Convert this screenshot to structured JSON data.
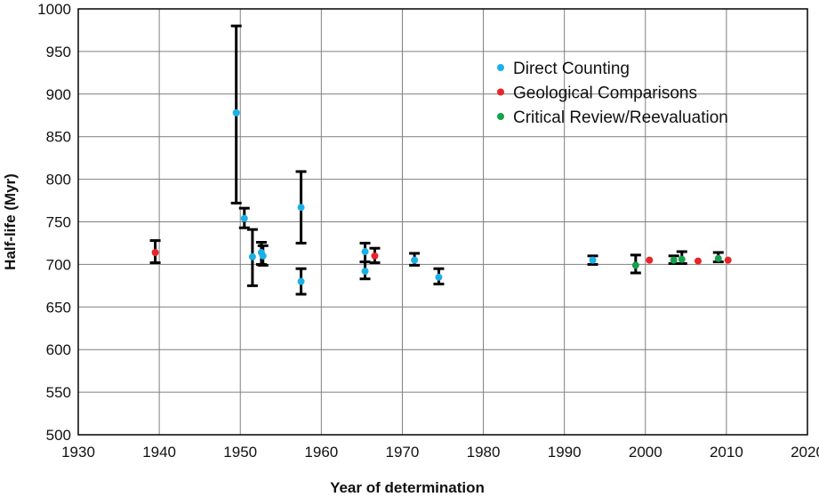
{
  "chart_data": {
    "type": "scatter",
    "xlabel": "Year of determination",
    "ylabel": "Half-life (Myr)",
    "xlim": [
      1930,
      2020
    ],
    "ylim": [
      500,
      1000
    ],
    "xticks": [
      1930,
      1940,
      1950,
      1960,
      1970,
      1980,
      1990,
      2000,
      2010,
      2020
    ],
    "yticks": [
      500,
      550,
      600,
      650,
      700,
      750,
      800,
      850,
      900,
      950,
      1000
    ],
    "grid": true,
    "legend_position": "top-right",
    "series": [
      {
        "name": "Direct Counting",
        "color": "#1ab0e8",
        "points": [
          {
            "x": 1949.5,
            "y": 878,
            "lo": 772,
            "hi": 980
          },
          {
            "x": 1950.5,
            "y": 754,
            "lo": 743,
            "hi": 766
          },
          {
            "x": 1951.5,
            "y": 709,
            "lo": 675,
            "hi": 741
          },
          {
            "x": 1952.6,
            "y": 714,
            "lo": 700,
            "hi": 726
          },
          {
            "x": 1952.8,
            "y": 710,
            "lo": 699,
            "hi": 722
          },
          {
            "x": 1957.5,
            "y": 767,
            "lo": 725,
            "hi": 809
          },
          {
            "x": 1957.5,
            "y": 680,
            "lo": 665,
            "hi": 695
          },
          {
            "x": 1965.4,
            "y": 715,
            "lo": 703,
            "hi": 725
          },
          {
            "x": 1965.4,
            "y": 692,
            "lo": 683,
            "hi": 703
          },
          {
            "x": 1971.5,
            "y": 705,
            "lo": 699,
            "hi": 713
          },
          {
            "x": 1974.5,
            "y": 685,
            "lo": 677,
            "hi": 695
          },
          {
            "x": 1993.5,
            "y": 705,
            "lo": 700,
            "hi": 710
          }
        ]
      },
      {
        "name": "Geological Comparisons",
        "color": "#e8242a",
        "points": [
          {
            "x": 1939.5,
            "y": 714,
            "lo": 702,
            "hi": 728
          },
          {
            "x": 1966.6,
            "y": 710,
            "lo": 702,
            "hi": 719
          },
          {
            "x": 2000.5,
            "y": 705
          },
          {
            "x": 2006.5,
            "y": 704
          },
          {
            "x": 2010.2,
            "y": 705
          }
        ]
      },
      {
        "name": "Critical Review/Reevaluation",
        "color": "#12a24a",
        "points": [
          {
            "x": 1998.8,
            "y": 699,
            "lo": 690,
            "hi": 711
          },
          {
            "x": 2003.5,
            "y": 705,
            "lo": 701,
            "hi": 710
          },
          {
            "x": 2004.5,
            "y": 706,
            "lo": 701,
            "hi": 715
          },
          {
            "x": 2009.0,
            "y": 707,
            "lo": 703,
            "hi": 714
          }
        ]
      }
    ]
  }
}
